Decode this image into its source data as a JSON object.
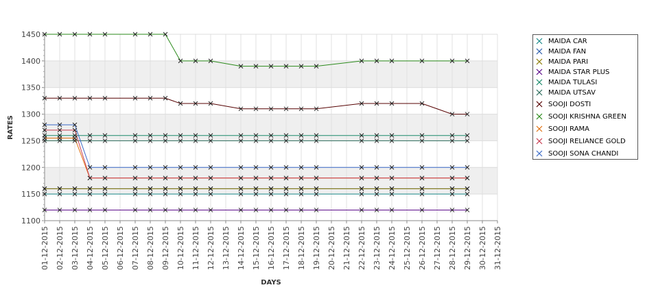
{
  "chart_data": {
    "type": "line",
    "title": "",
    "xlabel": "DAYS",
    "ylabel": "RATES",
    "ylim": [
      1100,
      1450
    ],
    "yticks": [
      1100,
      1150,
      1200,
      1250,
      1300,
      1350,
      1400,
      1450
    ],
    "x": [
      "01-12-2015",
      "02-12-2015",
      "03-12-2015",
      "04-12-2015",
      "05-12-2015",
      "06-12-2015",
      "07-12-2015",
      "08-12-2015",
      "09-12-2015",
      "10-12-2015",
      "11-12-2015",
      "12-12-2015",
      "13-12-2015",
      "14-12-2015",
      "15-12-2015",
      "16-12-2015",
      "17-12-2015",
      "18-12-2015",
      "19-12-2015",
      "20-12-2015",
      "21-12-2015",
      "22-12-2015",
      "23-12-2015",
      "24-12-2015",
      "25-12-2015",
      "26-12-2015",
      "27-12-2015",
      "28-12-2015",
      "29-12-2015",
      "30-12-2015",
      "31-12-2015"
    ],
    "grid": true,
    "alternating_bands": true,
    "legend_position": "right",
    "series": [
      {
        "name": "MAIDA CAR",
        "color": "#1a8a8a",
        "values": [
          1150,
          1150,
          1150,
          1150,
          1150,
          null,
          1150,
          1150,
          1150,
          1150,
          1150,
          1150,
          null,
          1150,
          1150,
          1150,
          1150,
          1150,
          1150,
          null,
          null,
          1150,
          1150,
          1150,
          null,
          1150,
          null,
          1150,
          1150,
          null,
          null
        ]
      },
      {
        "name": "MAIDA FAN",
        "color": "#2a5caa",
        "values": [
          1160,
          1160,
          1160,
          1160,
          1160,
          null,
          1160,
          1160,
          1160,
          1160,
          1160,
          1160,
          null,
          1160,
          1160,
          1160,
          1160,
          1160,
          1160,
          null,
          null,
          1160,
          1160,
          1160,
          null,
          1160,
          null,
          1160,
          1160,
          null,
          null
        ]
      },
      {
        "name": "MAIDA PARI",
        "color": "#8a7a00",
        "values": [
          1160,
          1160,
          1160,
          1160,
          1160,
          null,
          1160,
          1160,
          1160,
          1160,
          1160,
          1160,
          null,
          1160,
          1160,
          1160,
          1160,
          1160,
          1160,
          null,
          null,
          1160,
          1160,
          1160,
          null,
          1160,
          null,
          1160,
          1160,
          null,
          null
        ]
      },
      {
        "name": "MAIDA STAR PLUS",
        "color": "#5a0a8a",
        "values": [
          1120,
          1120,
          1120,
          1120,
          1120,
          null,
          1120,
          1120,
          1120,
          1120,
          1120,
          1120,
          null,
          1120,
          1120,
          1120,
          1120,
          1120,
          1120,
          null,
          null,
          1120,
          1120,
          1120,
          null,
          1120,
          null,
          1120,
          1120,
          null,
          null
        ]
      },
      {
        "name": "MAIDA TULASI",
        "color": "#1a8a6a",
        "values": [
          1260,
          1260,
          1260,
          1260,
          1260,
          null,
          1260,
          1260,
          1260,
          1260,
          1260,
          1260,
          null,
          1260,
          1260,
          1260,
          1260,
          1260,
          1260,
          null,
          null,
          1260,
          1260,
          1260,
          null,
          1260,
          null,
          1260,
          1260,
          null,
          null
        ]
      },
      {
        "name": "MAIDA UTSAV",
        "color": "#2a6a5a",
        "values": [
          1250,
          1250,
          1250,
          1250,
          1250,
          null,
          1250,
          1250,
          1250,
          1250,
          1250,
          1250,
          null,
          1250,
          1250,
          1250,
          1250,
          1250,
          1250,
          null,
          null,
          1250,
          1250,
          1250,
          null,
          1250,
          null,
          1250,
          1250,
          null,
          null
        ]
      },
      {
        "name": "SOOJI DOSTI",
        "color": "#550000",
        "values": [
          1330,
          1330,
          1330,
          1330,
          1330,
          null,
          1330,
          1330,
          1330,
          1320,
          1320,
          1320,
          null,
          1310,
          1310,
          1310,
          1310,
          1310,
          1310,
          null,
          null,
          1320,
          1320,
          1320,
          null,
          1320,
          null,
          1300,
          1300,
          null,
          null
        ]
      },
      {
        "name": "SOOJI KRISHNA GREEN",
        "color": "#2a8a1a",
        "values": [
          1450,
          1450,
          1450,
          1450,
          1450,
          null,
          1450,
          1450,
          1450,
          1400,
          1400,
          1400,
          null,
          1390,
          1390,
          1390,
          1390,
          1390,
          1390,
          null,
          null,
          1400,
          1400,
          1400,
          null,
          1400,
          null,
          1400,
          1400,
          null,
          null
        ]
      },
      {
        "name": "SOOJI RAMA",
        "color": "#e07010",
        "values": [
          1255,
          1255,
          1255,
          1180,
          1180,
          null,
          1180,
          1180,
          1180,
          1180,
          1180,
          1180,
          null,
          1180,
          1180,
          1180,
          1180,
          1180,
          1180,
          null,
          null,
          1180,
          1180,
          1180,
          null,
          1180,
          null,
          1180,
          1180,
          null,
          null
        ]
      },
      {
        "name": "SOOJI RELIANCE GOLD",
        "color": "#c83c50",
        "values": [
          1270,
          1270,
          1270,
          1180,
          1180,
          null,
          1180,
          1180,
          1180,
          1180,
          1180,
          1180,
          null,
          1180,
          1180,
          1180,
          1180,
          1180,
          1180,
          null,
          null,
          1180,
          1180,
          1180,
          null,
          1180,
          null,
          1180,
          1180,
          null,
          null
        ]
      },
      {
        "name": "SOOJI SONA CHANDI",
        "color": "#3a6ac8",
        "values": [
          1280,
          1280,
          1280,
          1200,
          1200,
          null,
          1200,
          1200,
          1200,
          1200,
          1200,
          1200,
          null,
          1200,
          1200,
          1200,
          1200,
          1200,
          1200,
          null,
          null,
          1200,
          1200,
          1200,
          null,
          1200,
          null,
          1200,
          1200,
          null,
          null
        ]
      }
    ]
  }
}
